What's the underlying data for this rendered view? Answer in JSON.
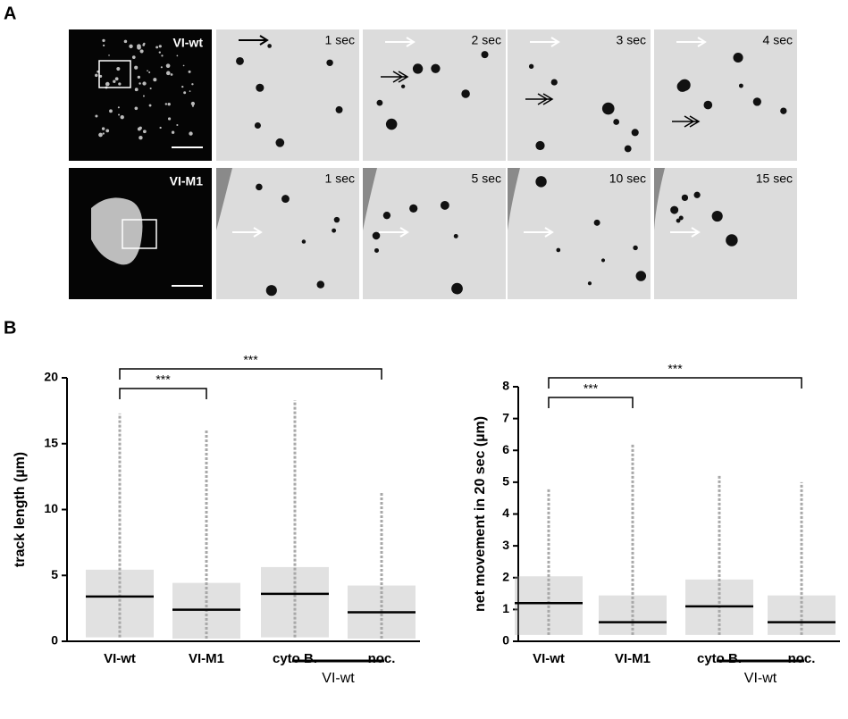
{
  "panel_a": {
    "label": "A",
    "rows": [
      {
        "label": "VI-wt",
        "times": [
          "1 sec",
          "2 sec",
          "3 sec",
          "4 sec"
        ]
      },
      {
        "label": "VI-M1",
        "times": [
          "1 sec",
          "5 sec",
          "10 sec",
          "15 sec"
        ]
      }
    ]
  },
  "panel_b": {
    "label": "B"
  },
  "chart_data": [
    {
      "type": "dot",
      "ylabel": "track length (µm)",
      "categories": [
        "VI-wt",
        "VI-M1",
        "cyto B.",
        "noc."
      ],
      "medians": [
        3.4,
        2.4,
        3.6,
        2.2
      ],
      "ranges": [
        [
          0.3,
          17.3
        ],
        [
          0.2,
          16
        ],
        [
          0.3,
          18.3
        ],
        [
          0.2,
          11.3
        ]
      ],
      "ylim": [
        0,
        20
      ],
      "yticks": [
        0,
        5,
        10,
        15,
        20
      ],
      "significance": [
        {
          "from": 0,
          "to": 1,
          "label": "***"
        },
        {
          "from": 0,
          "to": 3,
          "label": "***"
        }
      ],
      "group": {
        "label": "VI-wt",
        "from": 2,
        "to": 3
      },
      "dot_color": "#a8a8a8",
      "median_color": "#000000"
    },
    {
      "type": "dot",
      "ylabel": "net movement in 20 sec (µm)",
      "categories": [
        "VI-wt",
        "VI-M1",
        "cyto B.",
        "noc."
      ],
      "medians": [
        1.2,
        0.6,
        1.1,
        0.6
      ],
      "ranges": [
        [
          0.2,
          4.8
        ],
        [
          0.2,
          6.2
        ],
        [
          0.2,
          5.2
        ],
        [
          0.2,
          5.0
        ]
      ],
      "ylim": [
        0,
        8
      ],
      "yticks": [
        0,
        1,
        2,
        3,
        4,
        5,
        6,
        7,
        8
      ],
      "significance": [
        {
          "from": 0,
          "to": 1,
          "label": "***"
        },
        {
          "from": 0,
          "to": 3,
          "label": "***"
        }
      ],
      "group": {
        "label": "VI-wt",
        "from": 2,
        "to": 3
      },
      "dot_color": "#a8a8a8",
      "median_color": "#000000"
    }
  ]
}
